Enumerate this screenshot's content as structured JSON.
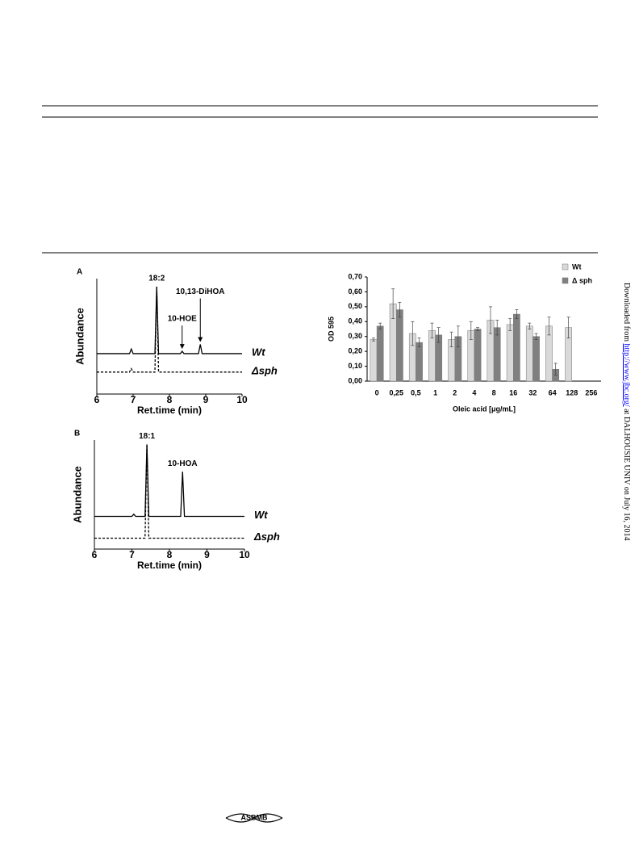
{
  "chart_data": [
    {
      "type": "line",
      "panel": "A",
      "ylabel": "Abundance",
      "xlabel": "Ret.time (min)",
      "xlim": [
        6,
        10
      ],
      "xticks": [
        6,
        7,
        8,
        9,
        10
      ],
      "ylim": [
        0,
        100
      ],
      "x": [
        6,
        6.9,
        6.95,
        7.0,
        7.6,
        7.65,
        7.7,
        8.3,
        8.35,
        8.4,
        8.8,
        8.85,
        8.9,
        10
      ],
      "series": [
        {
          "name": "Wt",
          "color": "#000000",
          "style": "solid",
          "values": [
            35,
            35,
            39,
            35,
            35,
            93,
            35,
            35,
            37,
            35,
            35,
            43,
            35,
            35
          ]
        },
        {
          "name": "Δsph",
          "color": "#000000",
          "style": "dashed",
          "values": [
            19,
            19,
            22,
            19,
            19,
            93,
            19,
            19,
            19,
            19,
            19,
            19,
            19,
            19
          ]
        }
      ],
      "annotations": [
        {
          "text": "18:2",
          "x": 7.65,
          "arrow": false
        },
        {
          "text": "10-HOE",
          "x": 8.35,
          "arrow": true
        },
        {
          "text": "10,13-DiHOA",
          "x": 8.85,
          "arrow": true
        }
      ]
    },
    {
      "type": "line",
      "panel": "B",
      "ylabel": "Abundance",
      "xlabel": "Ret.time (min)",
      "xlim": [
        6,
        10
      ],
      "xticks": [
        6,
        7,
        8,
        9,
        10
      ],
      "ylim": [
        0,
        100
      ],
      "x": [
        6,
        7.0,
        7.05,
        7.1,
        7.35,
        7.4,
        7.45,
        8.3,
        8.35,
        8.4,
        10
      ],
      "series": [
        {
          "name": "Wt",
          "color": "#000000",
          "style": "solid",
          "values": [
            30,
            30,
            32,
            30,
            30,
            96,
            30,
            30,
            71,
            30,
            30
          ]
        },
        {
          "name": "Δsph",
          "color": "#000000",
          "style": "dashed",
          "values": [
            10,
            10,
            10,
            10,
            10,
            96,
            10,
            10,
            10,
            10,
            10
          ]
        }
      ],
      "annotations": [
        {
          "text": "18:1",
          "x": 7.4,
          "arrow": false
        },
        {
          "text": "10-HOA",
          "x": 8.35,
          "arrow": false
        }
      ]
    },
    {
      "type": "bar",
      "ylabel": "OD 595",
      "xlabel": "Oleic acid [μg/mL]",
      "legend": "upper right",
      "categories": [
        "0",
        "0,25",
        "0,5",
        "1",
        "2",
        "4",
        "8",
        "16",
        "32",
        "64",
        "128",
        "256"
      ],
      "ylim": [
        0,
        0.7
      ],
      "yticks": [
        {
          "value": 0,
          "label": "0,00"
        },
        {
          "value": 0.1,
          "label": "0,10"
        },
        {
          "value": 0.2,
          "label": "0,20"
        },
        {
          "value": 0.3,
          "label": "0,30"
        },
        {
          "value": 0.4,
          "label": "0,40"
        },
        {
          "value": 0.5,
          "label": "0,50"
        },
        {
          "value": 0.6,
          "label": "0,60"
        },
        {
          "value": 0.7,
          "label": "0,70"
        }
      ],
      "series": [
        {
          "name": "Wt",
          "color": "#d9d9d9",
          "values": [
            0.28,
            0.52,
            0.32,
            0.34,
            0.28,
            0.34,
            0.41,
            0.38,
            0.37,
            0.37,
            0.36,
            null
          ],
          "errors": [
            0.01,
            0.1,
            0.08,
            0.05,
            0.05,
            0.06,
            0.09,
            0.04,
            0.02,
            0.06,
            0.07,
            null
          ]
        },
        {
          "name": "Δ sph",
          "color": "#808080",
          "values": [
            0.37,
            0.48,
            0.26,
            0.31,
            0.3,
            0.35,
            0.36,
            0.45,
            0.3,
            0.08,
            null,
            null
          ],
          "errors": [
            0.02,
            0.05,
            0.03,
            0.05,
            0.07,
            0.01,
            0.05,
            0.03,
            0.02,
            0.04,
            null,
            null
          ]
        }
      ]
    }
  ],
  "side_note": {
    "before": "Downloaded from ",
    "link": "http://www.jbc.org/",
    "after": " at DALHOUSIE UNIV on July 16, 2014"
  },
  "footer_logo": "ASBMB"
}
